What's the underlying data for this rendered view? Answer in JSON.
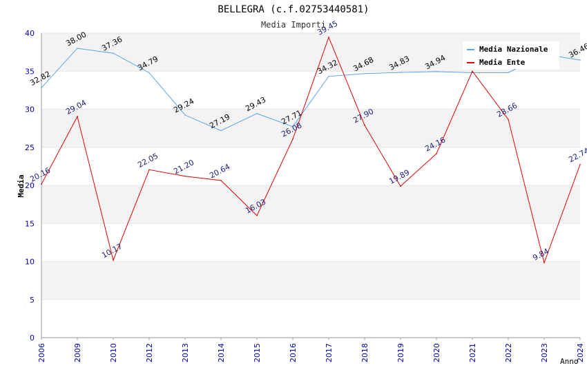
{
  "chart_data": {
    "type": "line",
    "title": "BELLEGRA (c.f.02753440581)",
    "subtitle": "Media Importi",
    "xlabel": "Anno",
    "ylabel": "Media",
    "ylim": [
      0,
      40
    ],
    "yticks": [
      "0",
      "5",
      "10",
      "15",
      "20",
      "25",
      "30",
      "35",
      "40"
    ],
    "categories": [
      "2006",
      "2009",
      "2010",
      "2012",
      "2013",
      "2014",
      "2015",
      "2016",
      "2017",
      "2018",
      "2019",
      "2020",
      "2021",
      "2022",
      "2023",
      "2024"
    ],
    "grid": true,
    "legend_position": "top-right",
    "series": [
      {
        "name": "Media Nazionale",
        "color": "#5aa2e6",
        "label_color": "#000000",
        "values": [
          32.82,
          38.0,
          37.36,
          34.79,
          29.24,
          27.19,
          29.43,
          27.71,
          34.32,
          34.68,
          34.83,
          34.94,
          34.8,
          34.8,
          37.2,
          36.46
        ],
        "labels": [
          "32.82",
          "38.00",
          "37.36",
          "34.79",
          "29.24",
          "27.19",
          "29.43",
          "27.71",
          "34.32",
          "34.68",
          "34.83",
          "34.94",
          "",
          "",
          "",
          "36.46"
        ]
      },
      {
        "name": "Media Ente",
        "color": "#e00000",
        "label_color": "#1a1a7a",
        "values": [
          20.16,
          29.04,
          10.17,
          22.05,
          21.2,
          20.64,
          16.03,
          26.08,
          39.45,
          27.9,
          19.89,
          24.16,
          35.0,
          28.66,
          9.84,
          22.74
        ],
        "labels": [
          "20.16",
          "29.04",
          "10.17",
          "22.05",
          "21.20",
          "20.64",
          "16.03",
          "26.08",
          "39.45",
          "27.90",
          "19.89",
          "24.16",
          "",
          "28.66",
          "9.84",
          "22.74"
        ]
      }
    ]
  },
  "colors": {
    "axis_tick_text": "#0000aa",
    "band_fill": "#f3f3f3",
    "grid_line": "#ffffff"
  }
}
